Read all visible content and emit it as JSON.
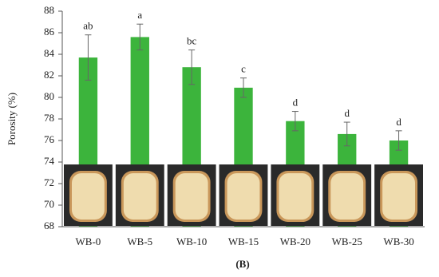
{
  "chart_data": {
    "type": "bar",
    "y_label": "Porosity (%)",
    "caption": "(B)",
    "categories": [
      "WB-0",
      "WB-5",
      "WB-10",
      "WB-15",
      "WB-20",
      "WB-25",
      "WB-30"
    ],
    "values": [
      83.7,
      85.6,
      82.8,
      80.9,
      77.8,
      76.6,
      76.0
    ],
    "errors": [
      2.1,
      1.2,
      1.6,
      0.9,
      0.9,
      1.1,
      0.9
    ],
    "letters": [
      "ab",
      "a",
      "bc",
      "c",
      "d",
      "d",
      "d"
    ],
    "color": "#3cb43c",
    "ylim": [
      68,
      88
    ],
    "yticks": [
      68,
      70,
      72,
      74,
      76,
      78,
      80,
      82,
      84,
      86,
      88
    ],
    "grid": false
  }
}
